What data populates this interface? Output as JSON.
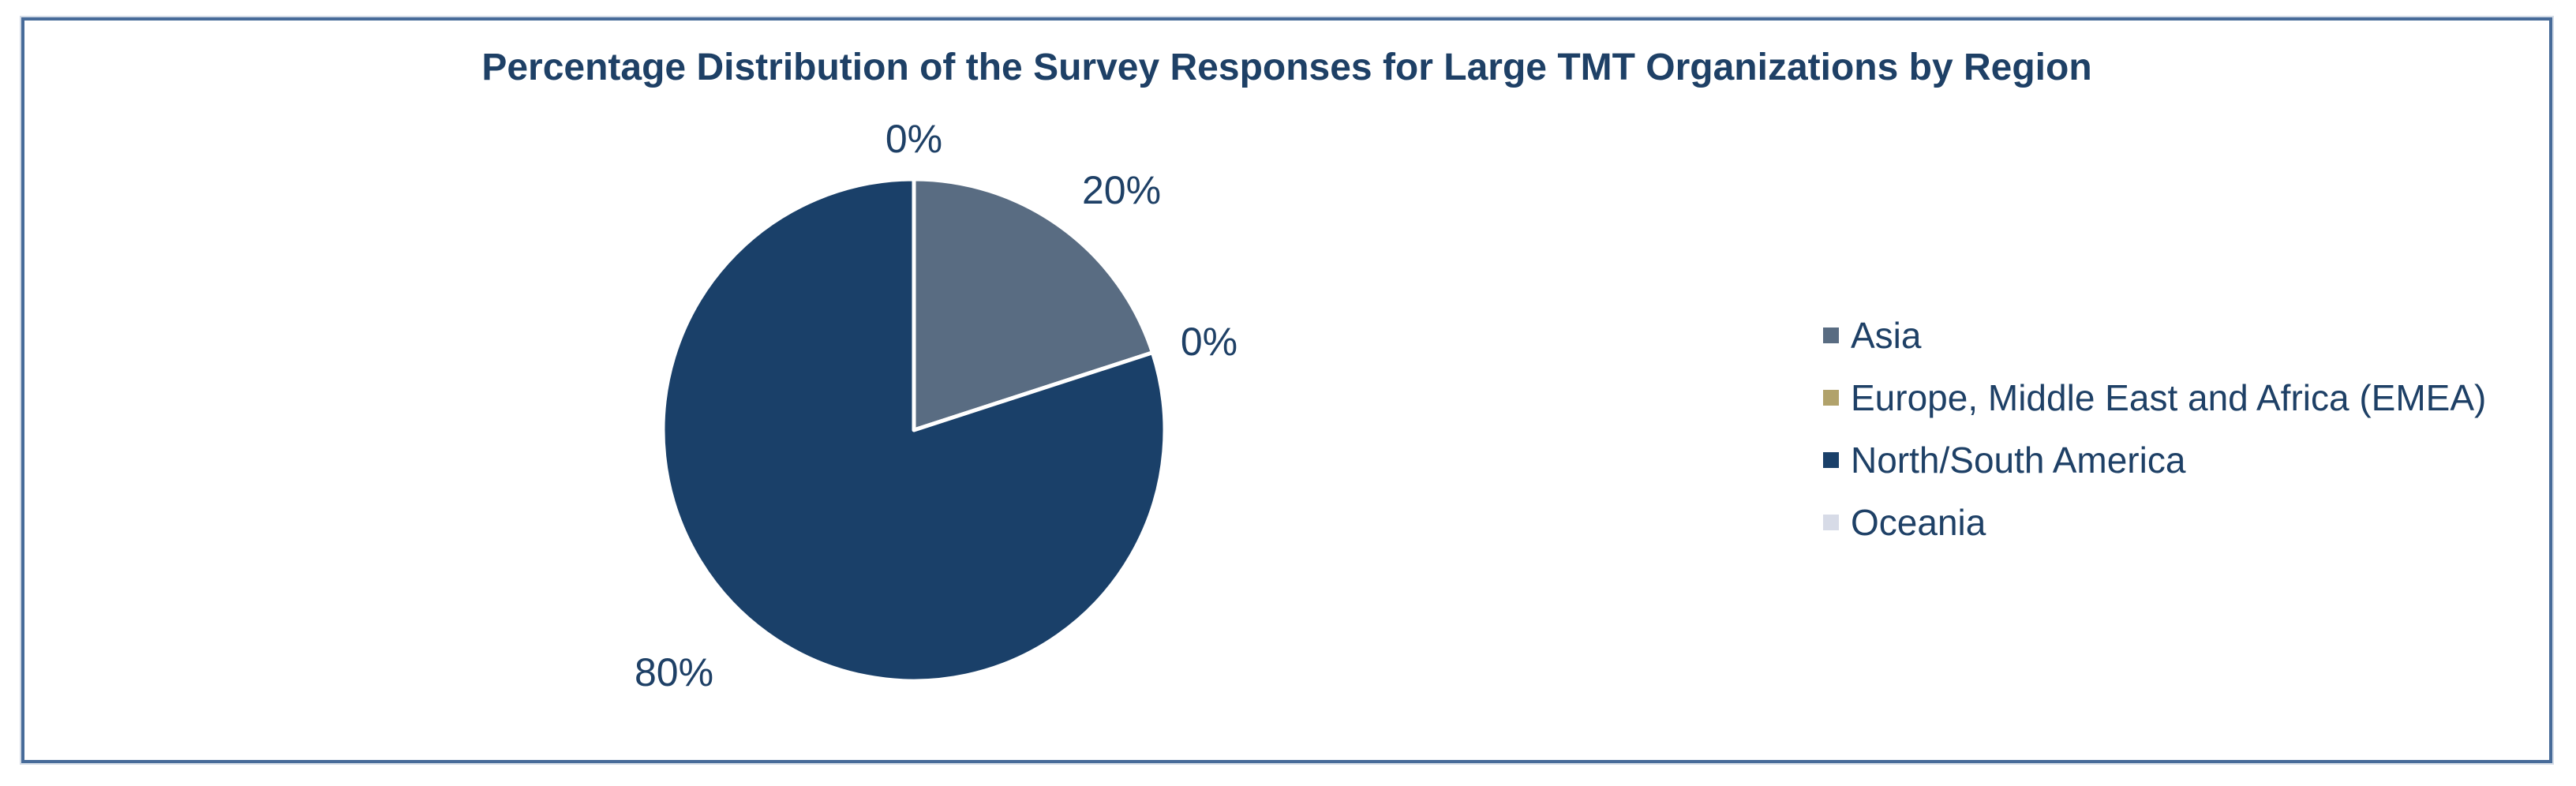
{
  "chart_data": {
    "type": "pie",
    "title": "Percentage Distribution of the Survey Responses for Large TMT Organizations by Region",
    "unit": "percent",
    "legend_position": "right",
    "start_angle_deg_from_top": 0,
    "direction": "clockwise",
    "slices": [
      {
        "label": "Asia",
        "value": 20,
        "pct_label": "20%",
        "color": "#596C82"
      },
      {
        "label": "Europe, Middle East and Africa (EMEA)",
        "value": 0,
        "pct_label": "0%",
        "color": "#B1A26B"
      },
      {
        "label": "North/South America",
        "value": 80,
        "pct_label": "80%",
        "color": "#1A4069"
      },
      {
        "label": "Oceania",
        "value": 0,
        "pct_label": "0%",
        "color": "#D7DBE7"
      }
    ],
    "colors": {
      "text": "#1E4066",
      "frame_border": "#476B99",
      "slice_divider": "#FFFFFF"
    }
  }
}
